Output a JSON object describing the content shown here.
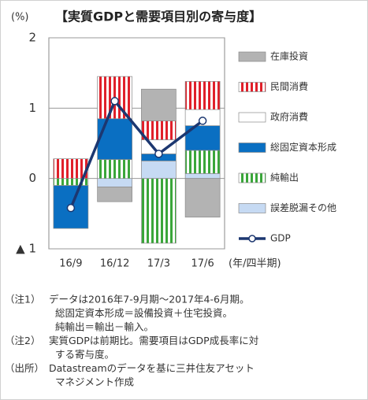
{
  "chart_data": {
    "type": "stacked-bar-line",
    "title": "【実質GDPと需要項目別の寄与度】",
    "y_unit": "(%)",
    "x_unit": "(年/四半期)",
    "categories": [
      "16/9",
      "16/12",
      "17/3",
      "17/6"
    ],
    "ylim": [
      -1,
      2
    ],
    "yticks": [
      {
        "value": -1,
        "label": "▲ 1"
      },
      0,
      1,
      2
    ],
    "grid": true,
    "series": [
      {
        "name": "在庫投資",
        "color": "#b3b3b3",
        "values": [
          0,
          -0.21,
          0.45,
          -0.55
        ]
      },
      {
        "name": "民間消費",
        "color": "#e0202a",
        "pattern": "vertical-stripes",
        "values": [
          0.28,
          0.6,
          0.27,
          0.4
        ]
      },
      {
        "name": "政府消費",
        "color": "#ffffff",
        "values": [
          0,
          0,
          0.2,
          0.23
        ]
      },
      {
        "name": "総固定資本形成",
        "color": "#0a6fc2",
        "values": [
          -0.61,
          0.58,
          0.1,
          0.35
        ]
      },
      {
        "name": "純輸出",
        "color": "#3aa63a",
        "pattern": "vertical-stripes",
        "values": [
          -0.1,
          0.27,
          -0.92,
          0.33
        ]
      },
      {
        "name": "誤差脱漏その他",
        "color": "#c6daf3",
        "values": [
          0,
          -0.12,
          0.25,
          0.07
        ]
      },
      {
        "name": "GDP",
        "type": "line",
        "color": "#1c3770",
        "values": [
          -0.42,
          1.1,
          0.35,
          0.82
        ]
      }
    ]
  },
  "notes": [
    {
      "label": "（注1）",
      "lines": [
        "データは2016年7-9月期～2017年4-6月期。",
        "総固定資本形成＝設備投資＋住宅投資。",
        "純輸出＝輸出－輸入。"
      ]
    },
    {
      "label": "（注2）",
      "lines": [
        "実質GDPは前期比。需要項目はGDP成長率に対",
        "する寄与度。"
      ]
    },
    {
      "label": "（出所）",
      "lines": [
        "Datastreamのデータを基に三井住友アセット",
        "マネジメント作成"
      ]
    }
  ]
}
